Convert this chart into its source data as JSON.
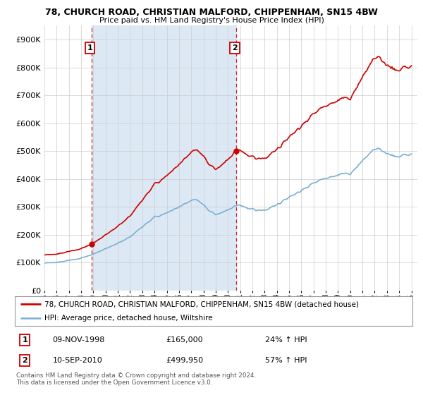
{
  "title": "78, CHURCH ROAD, CHRISTIAN MALFORD, CHIPPENHAM, SN15 4BW",
  "subtitle": "Price paid vs. HM Land Registry's House Price Index (HPI)",
  "sale1_date": "09-NOV-1998",
  "sale1_price": 165000,
  "sale1_hpi": "24% ↑ HPI",
  "sale1_label": "1",
  "sale2_date": "10-SEP-2010",
  "sale2_price": 499950,
  "sale2_hpi": "57% ↑ HPI",
  "sale2_label": "2",
  "legend_property": "78, CHURCH ROAD, CHRISTIAN MALFORD, CHIPPENHAM, SN15 4BW (detached house)",
  "legend_hpi": "HPI: Average price, detached house, Wiltshire",
  "footer": "Contains HM Land Registry data © Crown copyright and database right 2024.\nThis data is licensed under the Open Government Licence v3.0.",
  "property_color": "#cc0000",
  "hpi_color": "#7bafd4",
  "vline_color": "#cc0000",
  "fill_color": "#dce9f5",
  "ylim_min": 0,
  "ylim_max": 950000,
  "background_color": "#ffffff",
  "grid_color": "#cccccc",
  "sale1_year": 1998.833,
  "sale2_year": 2010.667
}
